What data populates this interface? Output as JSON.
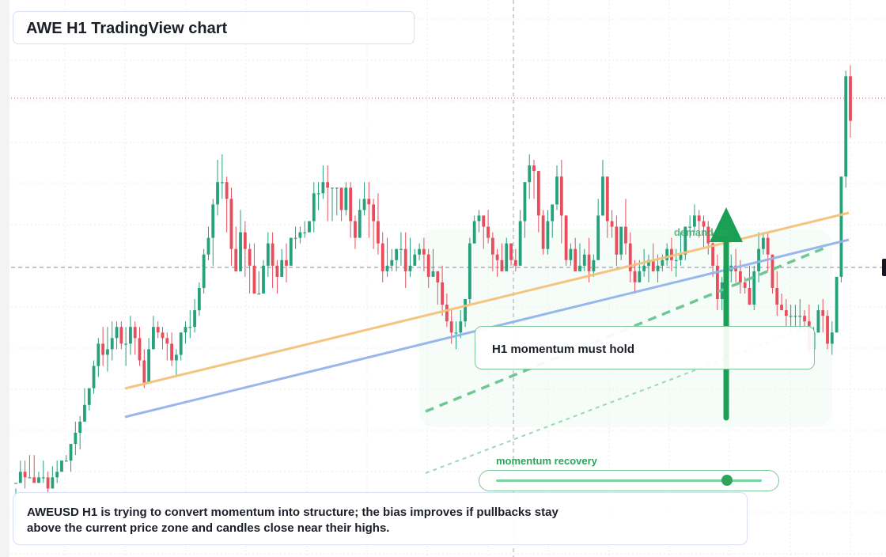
{
  "header": {
    "title": "AWE H1 TradingView chart"
  },
  "annotations": {
    "callout": "H1 momentum must hold",
    "demand_label": "demand  de",
    "momentum_label": "momentum recovery"
  },
  "summary": {
    "text": "AWEUSD H1 is trying to convert momentum into structure; the bias improves if pullbacks stay above the current price zone and candles close near their highs."
  },
  "colors": {
    "up": "#26a17b",
    "down": "#e84d5b",
    "trend_orange": "#f4c27a",
    "trend_blue": "#94b4ec",
    "accent_green": "#1aa055",
    "grid": "#ecedf1"
  },
  "chart_data": {
    "type": "candlestick",
    "symbol": "AWEUSD",
    "timeframe": "H1",
    "ylim": [
      0,
      100
    ],
    "levels": {
      "resistance": 83,
      "current": 52
    },
    "momentum_recovery": 0.87,
    "candles": [
      [
        13.3,
        13.3,
        12.3,
        5.4
      ],
      [
        13.3,
        15.3,
        17.3,
        13.3
      ],
      [
        15.3,
        14.3,
        17.3,
        12.3
      ],
      [
        14.3,
        14.3,
        18.3,
        14.3
      ],
      [
        14.3,
        13.3,
        18.3,
        13.3
      ],
      [
        13.3,
        14.3,
        15.3,
        13.3
      ],
      [
        14.3,
        14.3,
        17.3,
        13.3
      ],
      [
        14.3,
        12.3,
        15.3,
        11.3
      ],
      [
        12.3,
        14.3,
        16.3,
        12.3
      ],
      [
        14.3,
        15.3,
        17.3,
        13.3
      ],
      [
        15.3,
        17.3,
        17.3,
        15.3
      ],
      [
        17.3,
        17.3,
        18.3,
        17.3
      ],
      [
        17.3,
        20.3,
        20.3,
        15.3
      ],
      [
        20.3,
        22.3,
        24.3,
        18.3
      ],
      [
        22.3,
        24.3,
        25.3,
        19.3
      ],
      [
        24.3,
        27.3,
        30.3,
        24.3
      ],
      [
        27.3,
        30.3,
        30.3,
        26.3
      ],
      [
        30.3,
        34.3,
        35.3,
        29.3
      ],
      [
        34.3,
        38.3,
        39.3,
        32.3
      ],
      [
        38.3,
        36.3,
        41.3,
        34.3
      ],
      [
        36.3,
        37.3,
        41.3,
        33.3
      ],
      [
        37.3,
        39.3,
        42.3,
        35.3
      ],
      [
        39.3,
        41.3,
        42.3,
        37.3
      ],
      [
        41.3,
        38.3,
        42.3,
        37.3
      ],
      [
        38.3,
        38.3,
        41.3,
        34.3
      ],
      [
        38.3,
        41.3,
        43.3,
        36.3
      ],
      [
        41.3,
        39.3,
        42.3,
        36.3
      ],
      [
        39.3,
        35.3,
        41.3,
        34.3
      ],
      [
        35.3,
        31.3,
        37.3,
        30.3
      ],
      [
        31.3,
        37.3,
        39.3,
        31.3
      ],
      [
        37.3,
        41.3,
        43.3,
        37.3
      ],
      [
        41.3,
        40.3,
        42.3,
        39.3
      ],
      [
        40.3,
        39.3,
        41.3,
        37.3
      ],
      [
        39.3,
        38.3,
        40.3,
        35.3
      ],
      [
        38.3,
        35.3,
        40.3,
        34.3
      ],
      [
        35.3,
        36.3,
        37.3,
        32.3
      ],
      [
        36.3,
        40.3,
        40.3,
        35.3
      ],
      [
        40.3,
        41.3,
        42.3,
        38.3
      ],
      [
        41.3,
        41.3,
        44.3,
        39.3
      ],
      [
        41.3,
        44.3,
        46.3,
        40.3
      ],
      [
        44.3,
        48.3,
        49.3,
        43.3
      ],
      [
        48.3,
        54.3,
        55.3,
        47.3
      ],
      [
        54.3,
        57.3,
        59.3,
        53.3
      ],
      [
        57.3,
        63.3,
        64.3,
        52.3
      ],
      [
        63.3,
        67.3,
        71.3,
        61.3
      ],
      [
        67.3,
        67.3,
        72.3,
        64.3
      ],
      [
        67.3,
        64.3,
        68.3,
        58.3
      ],
      [
        64.3,
        55.3,
        66.3,
        52.3
      ],
      [
        55.3,
        51.3,
        59.3,
        51.3
      ],
      [
        51.3,
        58.3,
        62.3,
        51.3
      ],
      [
        58.3,
        55.3,
        60.3,
        50.3
      ],
      [
        55.3,
        52.3,
        56.3,
        47.3
      ],
      [
        52.3,
        47.3,
        56.3,
        47.3
      ],
      [
        47.3,
        47.3,
        51.3,
        47.3
      ],
      [
        47.3,
        52.3,
        53.3,
        47.3
      ],
      [
        52.3,
        56.3,
        58.3,
        50.3
      ],
      [
        56.3,
        52.3,
        58.3,
        48.3
      ],
      [
        52.3,
        50.3,
        53.3,
        47.3
      ],
      [
        50.3,
        53.3,
        55.3,
        50.3
      ],
      [
        53.3,
        52.3,
        56.3,
        49.3
      ],
      [
        52.3,
        57.3,
        57.3,
        52.3
      ],
      [
        57.3,
        57.3,
        59.3,
        55.3
      ],
      [
        57.3,
        58.3,
        59.3,
        56.3
      ],
      [
        58.3,
        58.3,
        60.3,
        57.3
      ],
      [
        58.3,
        60.3,
        60.3,
        58.3
      ],
      [
        60.3,
        65.3,
        67.3,
        58.3
      ],
      [
        65.3,
        65.3,
        67.3,
        62.3
      ],
      [
        65.3,
        67.3,
        70.3,
        64.3
      ],
      [
        67.3,
        66.3,
        70.3,
        60.3
      ],
      [
        66.3,
        66.3,
        66.3,
        60.3
      ],
      [
        66.3,
        66.3,
        66.3,
        61.3
      ],
      [
        66.3,
        62.3,
        66.3,
        60.3
      ],
      [
        62.3,
        66.3,
        67.3,
        61.3
      ],
      [
        66.3,
        60.3,
        67.3,
        57.3
      ],
      [
        60.3,
        57.3,
        61.3,
        55.3
      ],
      [
        57.3,
        62.3,
        64.3,
        57.3
      ],
      [
        62.3,
        64.3,
        67.3,
        61.3
      ],
      [
        64.3,
        63.3,
        67.3,
        57.3
      ],
      [
        63.3,
        60.3,
        64.3,
        55.3
      ],
      [
        60.3,
        56.3,
        65.3,
        54.3
      ],
      [
        56.3,
        51.3,
        58.3,
        49.3
      ],
      [
        51.3,
        52.3,
        57.3,
        50.3
      ],
      [
        52.3,
        53.3,
        55.3,
        51.3
      ],
      [
        53.3,
        55.3,
        55.3,
        51.3
      ],
      [
        55.3,
        55.3,
        58.3,
        52.3
      ],
      [
        55.3,
        51.3,
        58.3,
        48.3
      ],
      [
        51.3,
        52.3,
        57.3,
        50.3
      ],
      [
        52.3,
        54.3,
        55.3,
        52.3
      ],
      [
        54.3,
        55.3,
        56.3,
        53.3
      ],
      [
        55.3,
        54.3,
        57.3,
        51.3
      ],
      [
        54.3,
        50.3,
        55.3,
        48.3
      ],
      [
        50.3,
        51.3,
        55.3,
        50.3
      ],
      [
        51.3,
        49.3,
        51.3,
        45.3
      ],
      [
        49.3,
        45.3,
        52.3,
        43.3
      ],
      [
        45.3,
        42.3,
        47.3,
        41.3
      ],
      [
        42.3,
        40.3,
        44.3,
        38.3
      ],
      [
        40.3,
        40.3,
        42.3,
        37.3
      ],
      [
        40.3,
        42.3,
        44.3,
        39.3
      ],
      [
        42.3,
        46.3,
        46.3,
        41.3
      ],
      [
        46.3,
        56.3,
        57.3,
        45.3
      ],
      [
        56.3,
        60.3,
        61.3,
        56.3
      ],
      [
        60.3,
        61.3,
        62.3,
        58.3
      ],
      [
        61.3,
        59.3,
        61.3,
        55.3
      ],
      [
        59.3,
        57.3,
        62.3,
        56.3
      ],
      [
        57.3,
        54.3,
        58.3,
        51.3
      ],
      [
        54.3,
        53.3,
        55.3,
        50.3
      ],
      [
        53.3,
        51.3,
        56.3,
        51.3
      ],
      [
        51.3,
        56.3,
        57.3,
        51.3
      ],
      [
        56.3,
        53.3,
        56.3,
        52.3
      ],
      [
        53.3,
        52.3,
        55.3,
        51.3
      ],
      [
        52.3,
        60.3,
        62.3,
        52.3
      ],
      [
        60.3,
        67.3,
        67.3,
        57.3
      ],
      [
        67.3,
        70.3,
        72.3,
        64.3
      ],
      [
        70.3,
        69.3,
        71.3,
        64.3
      ],
      [
        69.3,
        61.3,
        69.3,
        58.3
      ],
      [
        61.3,
        55.3,
        62.3,
        54.3
      ],
      [
        55.3,
        60.3,
        62.3,
        54.3
      ],
      [
        60.3,
        63.3,
        63.3,
        57.3
      ],
      [
        63.3,
        68.3,
        70.3,
        62.3
      ],
      [
        68.3,
        61.3,
        71.3,
        56.3
      ],
      [
        61.3,
        53.3,
        61.3,
        52.3
      ],
      [
        53.3,
        55.3,
        56.3,
        52.3
      ],
      [
        55.3,
        51.3,
        57.3,
        51.3
      ],
      [
        51.3,
        52.3,
        56.3,
        51.3
      ],
      [
        52.3,
        54.3,
        55.3,
        51.3
      ],
      [
        54.3,
        51.3,
        57.3,
        49.3
      ],
      [
        51.3,
        53.3,
        54.3,
        50.3
      ],
      [
        53.3,
        61.3,
        64.3,
        53.3
      ],
      [
        61.3,
        68.3,
        71.3,
        61.3
      ],
      [
        68.3,
        60.3,
        68.3,
        57.3
      ],
      [
        60.3,
        59.3,
        62.3,
        57.3
      ],
      [
        59.3,
        54.3,
        61.3,
        52.3
      ],
      [
        54.3,
        59.3,
        59.3,
        53.3
      ],
      [
        59.3,
        56.3,
        64.3,
        54.3
      ],
      [
        56.3,
        51.3,
        58.3,
        49.3
      ],
      [
        51.3,
        49.3,
        53.3,
        47.3
      ],
      [
        49.3,
        51.3,
        53.3,
        49.3
      ],
      [
        51.3,
        52.3,
        55.3,
        50.3
      ],
      [
        52.3,
        53.3,
        54.3,
        49.3
      ],
      [
        53.3,
        51.3,
        56.3,
        51.3
      ],
      [
        51.3,
        52.3,
        54.3,
        49.3
      ],
      [
        52.3,
        53.3,
        54.3,
        51.3
      ],
      [
        53.3,
        55.3,
        56.3,
        52.3
      ],
      [
        55.3,
        53.3,
        57.3,
        51.3
      ],
      [
        53.3,
        53.3,
        55.3,
        50.3
      ],
      [
        53.3,
        54.3,
        58.3,
        52.3
      ],
      [
        54.3,
        59.3,
        59.3,
        53.3
      ],
      [
        59.3,
        59.3,
        61.3,
        57.3
      ],
      [
        59.3,
        61.3,
        63.3,
        58.3
      ],
      [
        61.3,
        60.3,
        62.3,
        57.3
      ],
      [
        60.3,
        59.3,
        61.3,
        55.3
      ],
      [
        59.3,
        56.3,
        60.3,
        54.3
      ],
      [
        56.3,
        52.3,
        58.3,
        50.3
      ],
      [
        52.3,
        46.3,
        54.3,
        44.3
      ],
      [
        46.3,
        49.3,
        50.3,
        44.3
      ],
      [
        49.3,
        51.3,
        55.3,
        48.3
      ],
      [
        51.3,
        52.3,
        54.3,
        49.3
      ],
      [
        52.3,
        51.3,
        55.3,
        49.3
      ],
      [
        51.3,
        49.3,
        53.3,
        47.3
      ],
      [
        49.3,
        48.3,
        50.3,
        47.3
      ],
      [
        48.3,
        45.3,
        52.3,
        45.3
      ],
      [
        45.3,
        51.3,
        52.3,
        44.3
      ],
      [
        51.3,
        55.3,
        58.3,
        49.3
      ],
      [
        55.3,
        57.3,
        58.3,
        54.3
      ],
      [
        57.3,
        54.3,
        58.3,
        51.3
      ],
      [
        54.3,
        48.3,
        54.3,
        47.3
      ],
      [
        48.3,
        45.3,
        51.3,
        43.3
      ],
      [
        45.3,
        44.3,
        47.3,
        44.3
      ],
      [
        44.3,
        43.3,
        46.3,
        41.3
      ],
      [
        43.3,
        43.3,
        45.3,
        40.3
      ],
      [
        43.3,
        43.3,
        45.3,
        41.3
      ],
      [
        43.3,
        43.3,
        46.3,
        40.3
      ],
      [
        43.3,
        42.3,
        44.3,
        40.3
      ],
      [
        42.3,
        37.3,
        45.3,
        36.3
      ],
      [
        37.3,
        40.3,
        41.3,
        36.3
      ],
      [
        40.3,
        44.3,
        45.3,
        40.3
      ],
      [
        44.3,
        43.3,
        46.3,
        40.3
      ],
      [
        43.3,
        38.3,
        44.3,
        37.3
      ],
      [
        38.3,
        40.3,
        42.3,
        36.3
      ],
      [
        40.3,
        50.3,
        50.3,
        40.3
      ],
      [
        50.3,
        68.3,
        68.3,
        49.3
      ],
      [
        68.3,
        86.3,
        87.3,
        66.3
      ],
      [
        86.3,
        78.3,
        88.3,
        75.3
      ]
    ]
  }
}
